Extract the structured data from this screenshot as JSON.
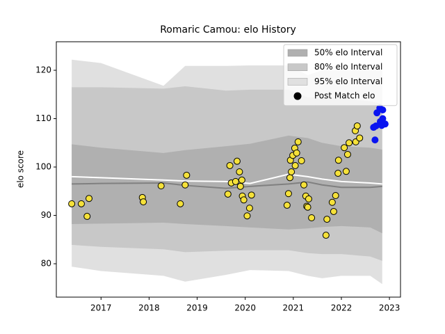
{
  "chart_data": {
    "type": "scatter",
    "title": "Romaric Camou: elo History",
    "y_label": "elo score",
    "xlim": [
      2016.07,
      2023.23
    ],
    "ylim": [
      73.1,
      125.9
    ],
    "xticks": [
      2017,
      2018,
      2019,
      2020,
      2021,
      2022,
      2023
    ],
    "yticks": [
      80,
      90,
      100,
      110,
      120
    ],
    "grid": false,
    "legend_position": "upper right",
    "band_x": [
      2016.39,
      2017.0,
      2018.3,
      2018.75,
      2019.6,
      2020.1,
      2020.9,
      2021.3,
      2021.6,
      2022.0,
      2022.6,
      2022.85
    ],
    "bands": [
      {
        "name": "50% elo Interval",
        "color": "#b0b0b0",
        "upper": [
          104.7,
          104,
          102.9,
          103.5,
          104.3,
          104.8,
          106.5,
          106,
          105,
          104.3,
          104,
          103.6
        ],
        "lower": [
          88.2,
          88.3,
          88.5,
          88.2,
          87.8,
          87.5,
          87.1,
          87.3,
          87.6,
          87.8,
          87.5,
          86.3
        ]
      },
      {
        "name": "80% elo Interval",
        "color": "#c8c8c8",
        "upper": [
          116.5,
          116.5,
          116.2,
          116.7,
          115.8,
          116,
          116,
          114.4,
          114.4,
          114.2,
          113.6,
          113
        ],
        "lower": [
          83.9,
          83.5,
          83,
          82.4,
          82.7,
          82.8,
          82.8,
          82.2,
          82,
          82,
          81.5,
          80.6
        ]
      },
      {
        "name": "95% elo Interval",
        "color": "#e0e0e0",
        "upper": [
          122.2,
          121.5,
          116.8,
          120.9,
          120.9,
          121,
          121,
          119,
          120,
          120,
          120,
          120
        ],
        "lower": [
          79.4,
          78.5,
          77.5,
          76.3,
          77.7,
          78.7,
          78.5,
          77.5,
          77,
          77.5,
          77.5,
          75.8
        ]
      }
    ],
    "lines": [
      {
        "color": "#808080",
        "values": [
          96.5,
          96.6,
          96.7,
          96.2,
          95.6,
          96,
          96.5,
          96.9,
          96.3,
          95.8,
          95.8,
          96
        ]
      },
      {
        "color": "#ffffff",
        "values": [
          98,
          97.8,
          97.3,
          97.1,
          97,
          96.6,
          98.5,
          98,
          97.5,
          97,
          96.7,
          96.5
        ]
      }
    ],
    "series": [
      {
        "name": "Post Match elo",
        "color": "#f5e13a",
        "legend_color": "#000000",
        "x": [
          2016.39,
          2016.59,
          2016.75,
          2016.71,
          2017.86,
          2017.88,
          2018.25,
          2018.65,
          2018.75,
          2018.78,
          2019.64,
          2019.68,
          2019.71,
          2019.8,
          2019.83,
          2019.88,
          2019.9,
          2019.93,
          2019.94,
          2019.97,
          2020.04,
          2020.09,
          2020.13,
          2020.87,
          2020.9,
          2020.93,
          2020.94,
          2020.96,
          2020.99,
          2021.03,
          2021.04,
          2021.07,
          2021.1,
          2021.17,
          2021.22,
          2021.26,
          2021.28,
          2021.32,
          2021.3,
          2021.38,
          2021.7,
          2021.68,
          2021.81,
          2021.84,
          2021.88,
          2021.94,
          2021.93,
          2022.06,
          2022.1,
          2022.13,
          2022.16,
          2022.29,
          2022.33,
          2022.3,
          2022.38
        ],
        "values": [
          92.4,
          92.4,
          93.5,
          89.8,
          93.7,
          92.8,
          96.1,
          92.4,
          96.3,
          98.3,
          94.4,
          100.3,
          96.7,
          97,
          101.2,
          99,
          96,
          97.3,
          94,
          93.2,
          89.9,
          91.5,
          94.2,
          92.1,
          94.5,
          97.8,
          101.4,
          99,
          102.4,
          103.9,
          100.3,
          102.9,
          105.2,
          101.3,
          96.3,
          94,
          91.9,
          93.4,
          91.7,
          89.5,
          89.2,
          85.9,
          92.7,
          90.8,
          94.1,
          101.4,
          98.7,
          104,
          99.1,
          102.6,
          105,
          107.5,
          108.5,
          105.2,
          106
        ]
      },
      {
        "color": "#0a14f0",
        "x": [
          2022.72,
          2022.67,
          2022.7,
          2022.74,
          2022.8,
          2022.86,
          2022.81,
          2022.86,
          2022.91,
          2022.84
        ],
        "values": [
          108.5,
          108.2,
          105.6,
          111.2,
          112.2,
          111.8,
          109.4,
          110,
          108.9,
          108.6
        ]
      }
    ]
  }
}
